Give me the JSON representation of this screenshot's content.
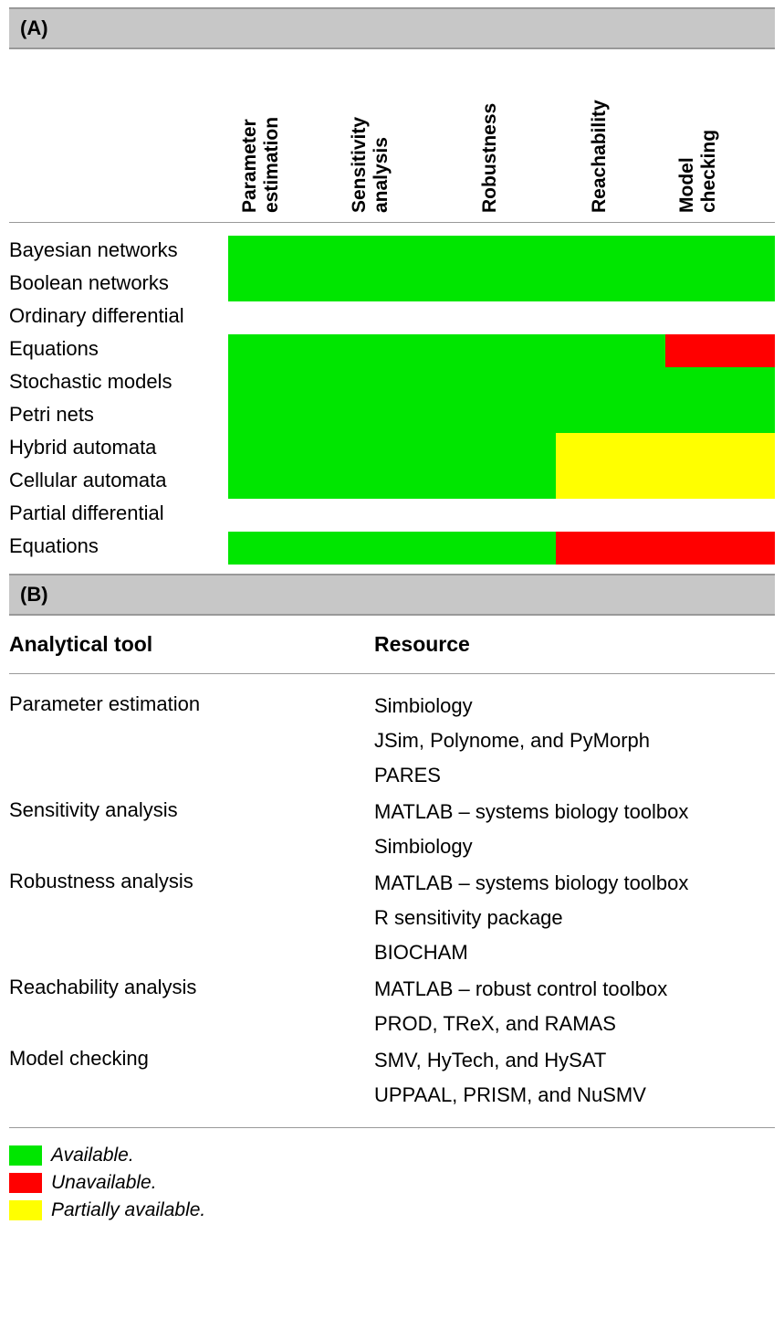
{
  "colors": {
    "available": "#00e600",
    "unavailable": "#ff0000",
    "partial": "#ffff00",
    "none": "#ffffff",
    "header_bg": "#c7c7c7"
  },
  "partA": {
    "label": "(A)",
    "columns": [
      {
        "line1": "Parameter",
        "line2": "estimation"
      },
      {
        "line1": "Sensitivity",
        "line2": "analysis"
      },
      {
        "line1": "Robustness",
        "line2": ""
      },
      {
        "line1": "Reachability",
        "line2": ""
      },
      {
        "line1": "Model",
        "line2": "checking"
      }
    ],
    "rows": [
      {
        "label": "Bayesian networks",
        "cells": [
          "available",
          "available",
          "available",
          "available",
          "available"
        ]
      },
      {
        "label": "Boolean networks",
        "cells": [
          "available",
          "available",
          "available",
          "available",
          "available"
        ]
      },
      {
        "label": "Ordinary differential",
        "cells": [
          "none",
          "none",
          "none",
          "none",
          "none"
        ]
      },
      {
        "label": "Equations",
        "cells": [
          "available",
          "available",
          "available",
          "available",
          "unavailable"
        ]
      },
      {
        "label": "Stochastic models",
        "cells": [
          "available",
          "available",
          "available",
          "available",
          "available"
        ]
      },
      {
        "label": "Petri nets",
        "cells": [
          "available",
          "available",
          "available",
          "available",
          "available"
        ]
      },
      {
        "label": "Hybrid automata",
        "cells": [
          "available",
          "available",
          "available",
          "partial",
          "partial"
        ]
      },
      {
        "label": "Cellular automata",
        "cells": [
          "available",
          "available",
          "available",
          "partial",
          "partial"
        ]
      },
      {
        "label": "Partial differential",
        "cells": [
          "none",
          "none",
          "none",
          "none",
          "none"
        ]
      },
      {
        "label": "Equations",
        "cells": [
          "available",
          "available",
          "available",
          "unavailable",
          "unavailable"
        ]
      }
    ]
  },
  "partB": {
    "label": "(B)",
    "head": {
      "tool": "Analytical tool",
      "resource": "Resource"
    },
    "rows": [
      {
        "tool": "Parameter estimation",
        "resources": [
          "Simbiology",
          "JSim, Polynome, and PyMorph",
          "PARES"
        ]
      },
      {
        "tool": "Sensitivity analysis",
        "resources": [
          "MATLAB – systems biology toolbox",
          "Simbiology"
        ]
      },
      {
        "tool": "Robustness analysis",
        "resources": [
          "MATLAB – systems biology toolbox",
          "R sensitivity package",
          "BIOCHAM"
        ]
      },
      {
        "tool": "Reachability analysis",
        "resources": [
          "MATLAB – robust control toolbox",
          "PROD, TReX, and RAMAS"
        ]
      },
      {
        "tool": "Model checking",
        "resources": [
          "SMV, HyTech, and HySAT",
          "UPPAAL, PRISM, and NuSMV"
        ]
      }
    ]
  },
  "legend": [
    {
      "color_key": "available",
      "label": "Available."
    },
    {
      "color_key": "unavailable",
      "label": "Unavailable."
    },
    {
      "color_key": "partial",
      "label": "Partially available."
    }
  ]
}
